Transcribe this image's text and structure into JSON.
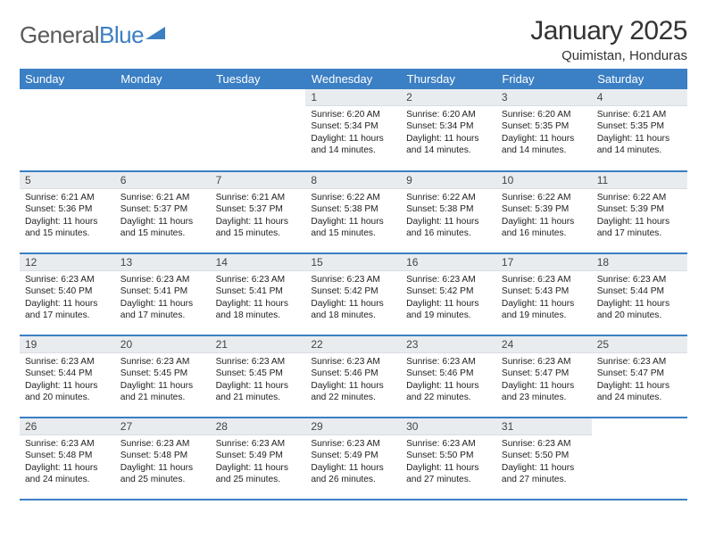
{
  "brand": {
    "word1": "General",
    "word2": "Blue"
  },
  "title": {
    "month": "January 2025",
    "location": "Quimistan, Honduras"
  },
  "colors": {
    "accent": "#3b7fc4",
    "header_text": "#ffffff",
    "daynum_bg": "#e9ecef",
    "body_text": "#222222"
  },
  "weekdays": [
    "Sunday",
    "Monday",
    "Tuesday",
    "Wednesday",
    "Thursday",
    "Friday",
    "Saturday"
  ],
  "weeks": [
    [
      {
        "num": "",
        "sunrise": "",
        "sunset": "",
        "daylight": ""
      },
      {
        "num": "",
        "sunrise": "",
        "sunset": "",
        "daylight": ""
      },
      {
        "num": "",
        "sunrise": "",
        "sunset": "",
        "daylight": ""
      },
      {
        "num": "1",
        "sunrise": "Sunrise: 6:20 AM",
        "sunset": "Sunset: 5:34 PM",
        "daylight": "Daylight: 11 hours and 14 minutes."
      },
      {
        "num": "2",
        "sunrise": "Sunrise: 6:20 AM",
        "sunset": "Sunset: 5:34 PM",
        "daylight": "Daylight: 11 hours and 14 minutes."
      },
      {
        "num": "3",
        "sunrise": "Sunrise: 6:20 AM",
        "sunset": "Sunset: 5:35 PM",
        "daylight": "Daylight: 11 hours and 14 minutes."
      },
      {
        "num": "4",
        "sunrise": "Sunrise: 6:21 AM",
        "sunset": "Sunset: 5:35 PM",
        "daylight": "Daylight: 11 hours and 14 minutes."
      }
    ],
    [
      {
        "num": "5",
        "sunrise": "Sunrise: 6:21 AM",
        "sunset": "Sunset: 5:36 PM",
        "daylight": "Daylight: 11 hours and 15 minutes."
      },
      {
        "num": "6",
        "sunrise": "Sunrise: 6:21 AM",
        "sunset": "Sunset: 5:37 PM",
        "daylight": "Daylight: 11 hours and 15 minutes."
      },
      {
        "num": "7",
        "sunrise": "Sunrise: 6:21 AM",
        "sunset": "Sunset: 5:37 PM",
        "daylight": "Daylight: 11 hours and 15 minutes."
      },
      {
        "num": "8",
        "sunrise": "Sunrise: 6:22 AM",
        "sunset": "Sunset: 5:38 PM",
        "daylight": "Daylight: 11 hours and 15 minutes."
      },
      {
        "num": "9",
        "sunrise": "Sunrise: 6:22 AM",
        "sunset": "Sunset: 5:38 PM",
        "daylight": "Daylight: 11 hours and 16 minutes."
      },
      {
        "num": "10",
        "sunrise": "Sunrise: 6:22 AM",
        "sunset": "Sunset: 5:39 PM",
        "daylight": "Daylight: 11 hours and 16 minutes."
      },
      {
        "num": "11",
        "sunrise": "Sunrise: 6:22 AM",
        "sunset": "Sunset: 5:39 PM",
        "daylight": "Daylight: 11 hours and 17 minutes."
      }
    ],
    [
      {
        "num": "12",
        "sunrise": "Sunrise: 6:23 AM",
        "sunset": "Sunset: 5:40 PM",
        "daylight": "Daylight: 11 hours and 17 minutes."
      },
      {
        "num": "13",
        "sunrise": "Sunrise: 6:23 AM",
        "sunset": "Sunset: 5:41 PM",
        "daylight": "Daylight: 11 hours and 17 minutes."
      },
      {
        "num": "14",
        "sunrise": "Sunrise: 6:23 AM",
        "sunset": "Sunset: 5:41 PM",
        "daylight": "Daylight: 11 hours and 18 minutes."
      },
      {
        "num": "15",
        "sunrise": "Sunrise: 6:23 AM",
        "sunset": "Sunset: 5:42 PM",
        "daylight": "Daylight: 11 hours and 18 minutes."
      },
      {
        "num": "16",
        "sunrise": "Sunrise: 6:23 AM",
        "sunset": "Sunset: 5:42 PM",
        "daylight": "Daylight: 11 hours and 19 minutes."
      },
      {
        "num": "17",
        "sunrise": "Sunrise: 6:23 AM",
        "sunset": "Sunset: 5:43 PM",
        "daylight": "Daylight: 11 hours and 19 minutes."
      },
      {
        "num": "18",
        "sunrise": "Sunrise: 6:23 AM",
        "sunset": "Sunset: 5:44 PM",
        "daylight": "Daylight: 11 hours and 20 minutes."
      }
    ],
    [
      {
        "num": "19",
        "sunrise": "Sunrise: 6:23 AM",
        "sunset": "Sunset: 5:44 PM",
        "daylight": "Daylight: 11 hours and 20 minutes."
      },
      {
        "num": "20",
        "sunrise": "Sunrise: 6:23 AM",
        "sunset": "Sunset: 5:45 PM",
        "daylight": "Daylight: 11 hours and 21 minutes."
      },
      {
        "num": "21",
        "sunrise": "Sunrise: 6:23 AM",
        "sunset": "Sunset: 5:45 PM",
        "daylight": "Daylight: 11 hours and 21 minutes."
      },
      {
        "num": "22",
        "sunrise": "Sunrise: 6:23 AM",
        "sunset": "Sunset: 5:46 PM",
        "daylight": "Daylight: 11 hours and 22 minutes."
      },
      {
        "num": "23",
        "sunrise": "Sunrise: 6:23 AM",
        "sunset": "Sunset: 5:46 PM",
        "daylight": "Daylight: 11 hours and 22 minutes."
      },
      {
        "num": "24",
        "sunrise": "Sunrise: 6:23 AM",
        "sunset": "Sunset: 5:47 PM",
        "daylight": "Daylight: 11 hours and 23 minutes."
      },
      {
        "num": "25",
        "sunrise": "Sunrise: 6:23 AM",
        "sunset": "Sunset: 5:47 PM",
        "daylight": "Daylight: 11 hours and 24 minutes."
      }
    ],
    [
      {
        "num": "26",
        "sunrise": "Sunrise: 6:23 AM",
        "sunset": "Sunset: 5:48 PM",
        "daylight": "Daylight: 11 hours and 24 minutes."
      },
      {
        "num": "27",
        "sunrise": "Sunrise: 6:23 AM",
        "sunset": "Sunset: 5:48 PM",
        "daylight": "Daylight: 11 hours and 25 minutes."
      },
      {
        "num": "28",
        "sunrise": "Sunrise: 6:23 AM",
        "sunset": "Sunset: 5:49 PM",
        "daylight": "Daylight: 11 hours and 25 minutes."
      },
      {
        "num": "29",
        "sunrise": "Sunrise: 6:23 AM",
        "sunset": "Sunset: 5:49 PM",
        "daylight": "Daylight: 11 hours and 26 minutes."
      },
      {
        "num": "30",
        "sunrise": "Sunrise: 6:23 AM",
        "sunset": "Sunset: 5:50 PM",
        "daylight": "Daylight: 11 hours and 27 minutes."
      },
      {
        "num": "31",
        "sunrise": "Sunrise: 6:23 AM",
        "sunset": "Sunset: 5:50 PM",
        "daylight": "Daylight: 11 hours and 27 minutes."
      },
      {
        "num": "",
        "sunrise": "",
        "sunset": "",
        "daylight": ""
      }
    ]
  ]
}
